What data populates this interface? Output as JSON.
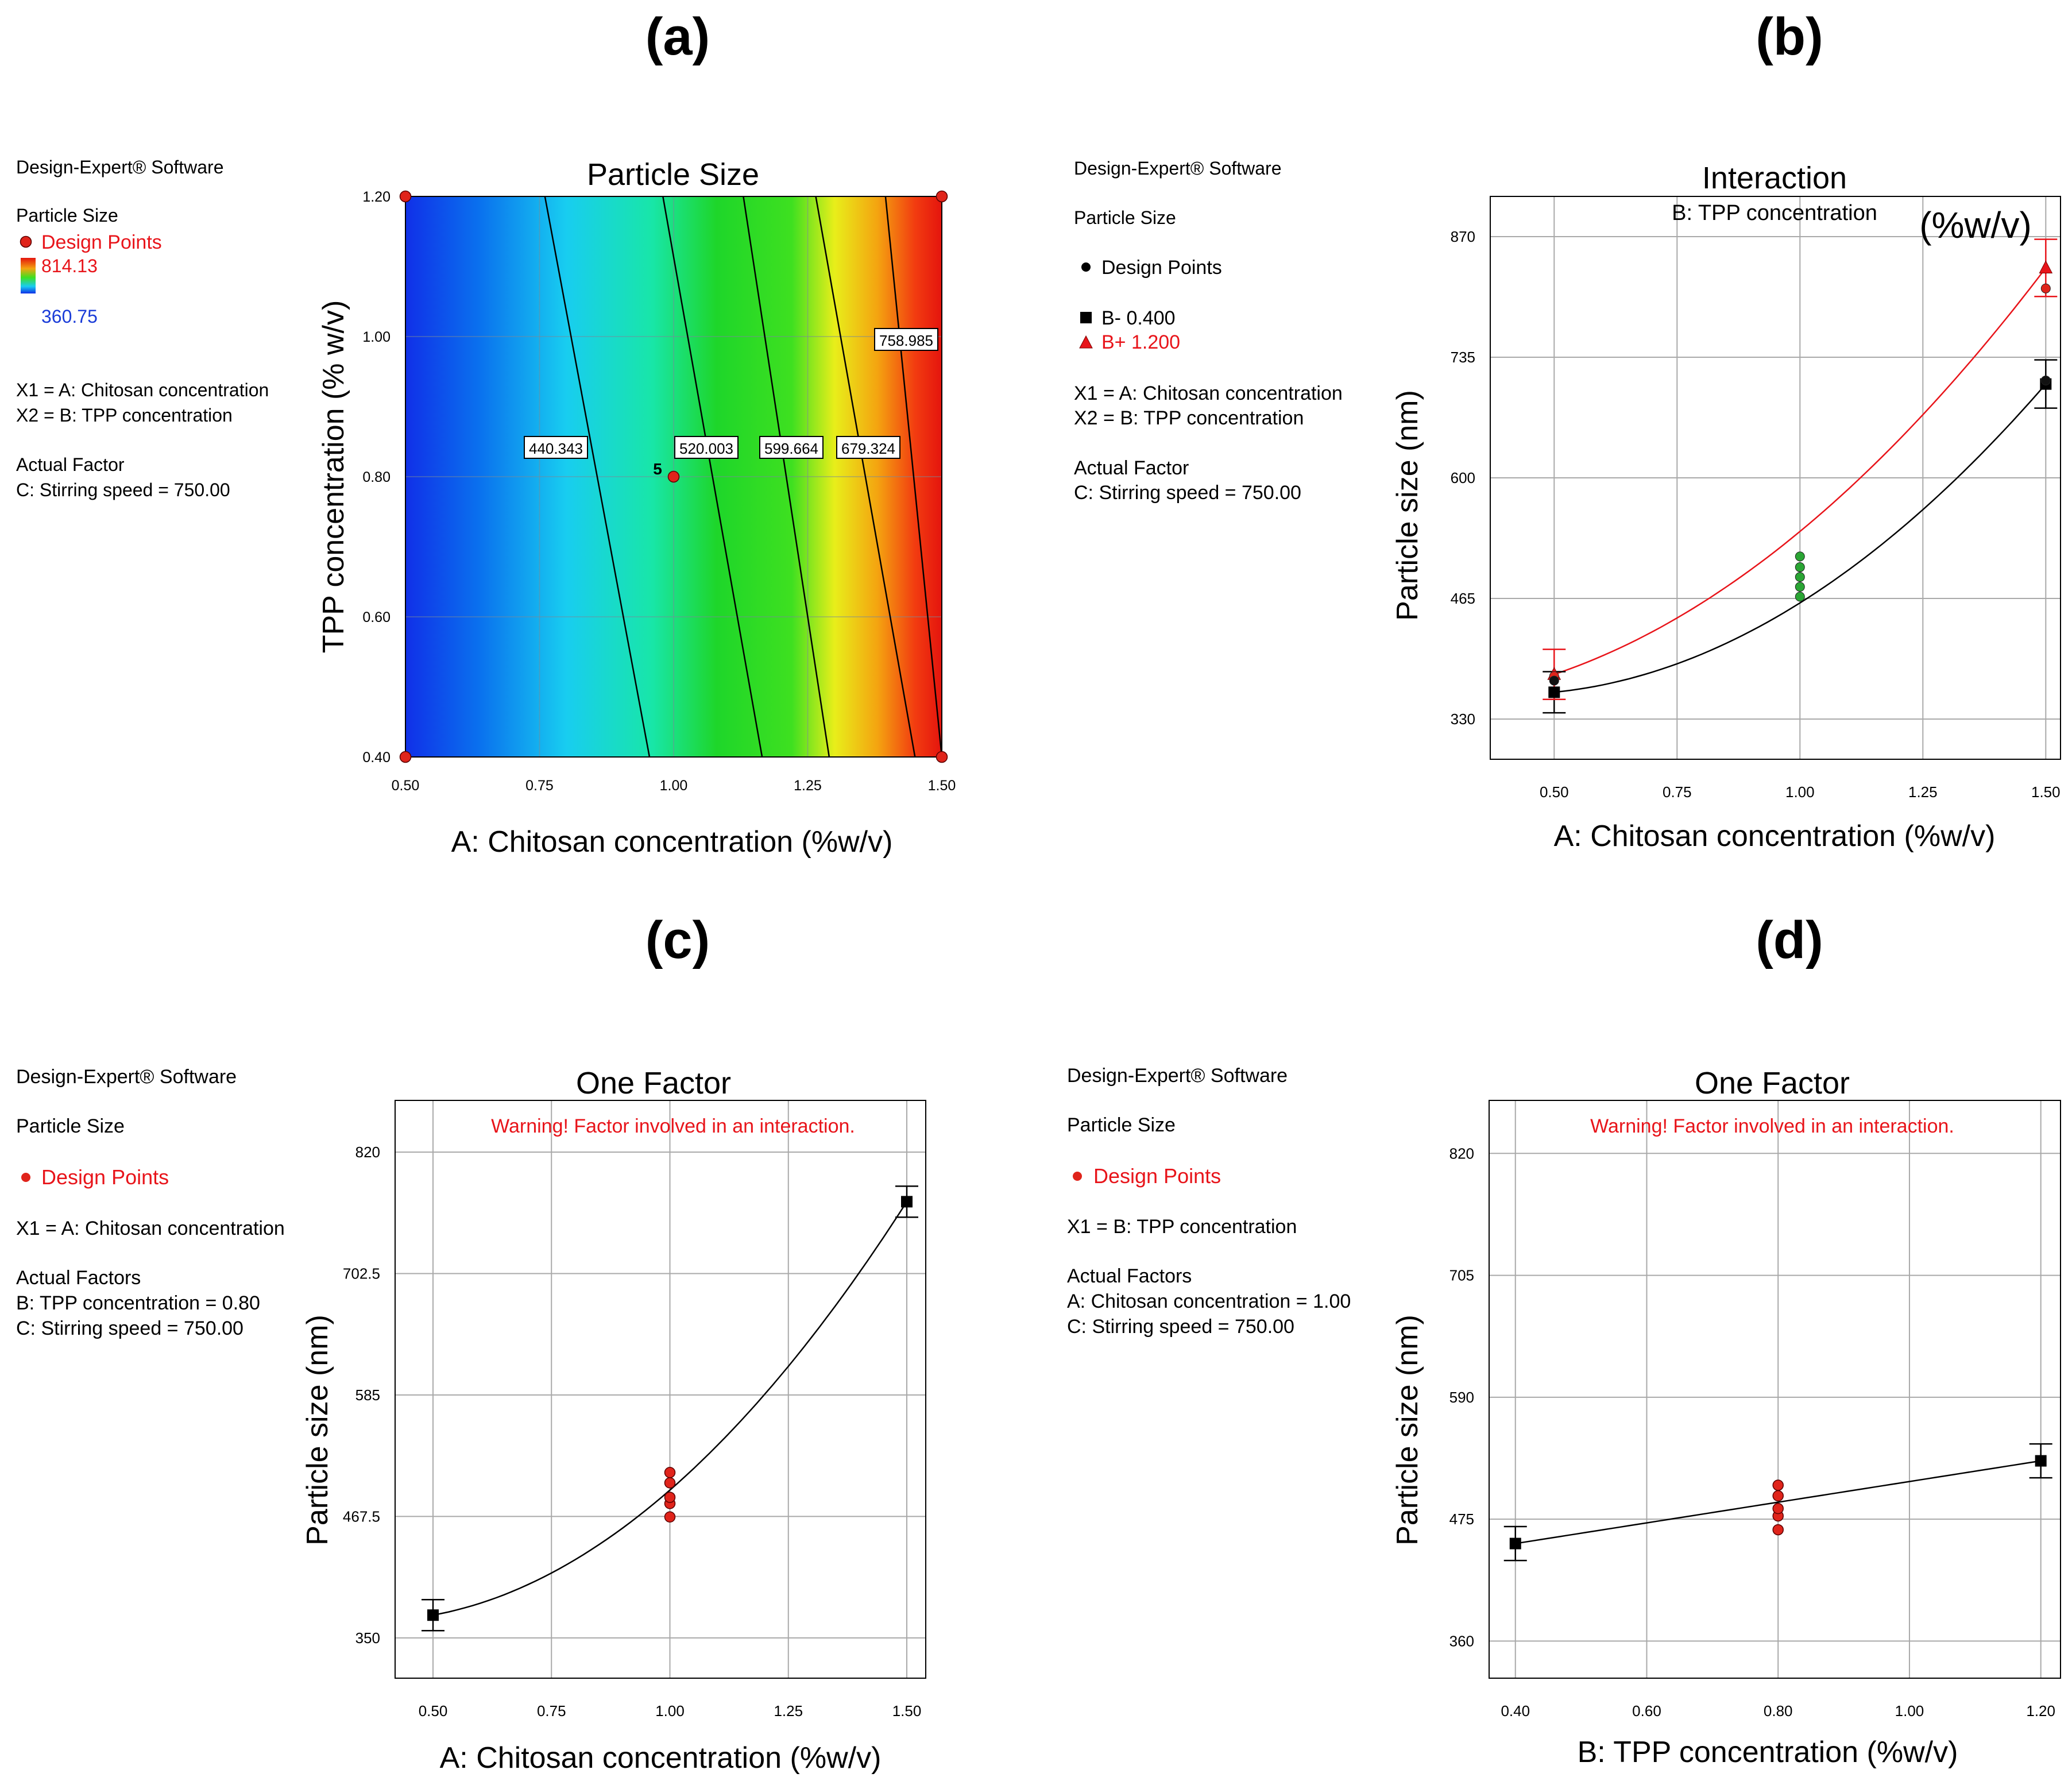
{
  "colors": {
    "accent_red": "#e8141a",
    "blue_text": "#1a3cd8",
    "grid": "#a9a9a9",
    "point_red": "#e0241b",
    "point_green": "#2aa534"
  },
  "chart_data": [
    {
      "panel_label": "(a)",
      "type": "heatmap",
      "title": "Particle Size",
      "xlabel": "A: Chitosan concentration (%w/v)",
      "ylabel": "TPP concentration (% w/v)",
      "xlim": [
        0.5,
        1.5
      ],
      "ylim": [
        0.4,
        1.2
      ],
      "xticks": [
        "0.50",
        "0.75",
        "1.00",
        "1.25",
        "1.50"
      ],
      "yticks": [
        "0.40",
        "0.60",
        "0.80",
        "1.00",
        "1.20"
      ],
      "color_range": [
        360.75,
        814.13
      ],
      "contours": [
        {
          "label": "440.343",
          "x_at_ymin": 0.955,
          "x_at_ymax": 0.76
        },
        {
          "label": "520.003",
          "x_at_ymin": 1.165,
          "x_at_ymax": 0.98
        },
        {
          "label": "599.664",
          "x_at_ymin": 1.29,
          "x_at_ymax": 1.13
        },
        {
          "label": "679.324",
          "x_at_ymin": 1.45,
          "x_at_ymax": 1.265
        },
        {
          "label": "758.985",
          "x_at_ymin": 1.5,
          "x_at_ymax": 1.395
        }
      ],
      "center_point": {
        "x": 1.0,
        "y": 0.8,
        "replicates": "5"
      },
      "design_points": [
        {
          "x": 0.5,
          "y": 0.4
        },
        {
          "x": 0.5,
          "y": 1.2
        },
        {
          "x": 1.5,
          "y": 0.4
        },
        {
          "x": 1.5,
          "y": 1.2
        },
        {
          "x": 1.0,
          "y": 0.8
        }
      ],
      "legend": [
        "Design-Expert® Software",
        "Particle Size",
        "Design Points",
        "814.13",
        "360.75",
        "X1 = A: Chitosan concentration",
        "X2 = B: TPP concentration",
        "Actual Factor",
        "C: Stirring speed = 750.00"
      ]
    },
    {
      "panel_label": "(b)",
      "type": "line",
      "title": "Interaction",
      "subtitle": "B: TPP concentration",
      "annotation": "(%w/v)",
      "xlabel": "A: Chitosan concentration (%w/v)",
      "ylabel": "Particle size (nm)",
      "xlim": [
        0.37,
        1.53
      ],
      "ylim": [
        285,
        915
      ],
      "xticks": [
        "0.50",
        "0.75",
        "1.00",
        "1.25",
        "1.50"
      ],
      "yticks": [
        "330",
        "465",
        "600",
        "735",
        "870"
      ],
      "series": [
        {
          "name": "B- 0.400",
          "x": [
            0.5,
            1.0,
            1.5
          ],
          "values": [
            360,
            460,
            705
          ],
          "err": [
            23,
            0,
            27
          ],
          "color": "#000000"
        },
        {
          "name": "B+ 1.200",
          "x": [
            0.5,
            1.0,
            1.5
          ],
          "values": [
            380,
            540,
            835
          ],
          "err": [
            28,
            0,
            32
          ],
          "color": "#e8141a"
        }
      ],
      "design_points": [
        {
          "x": 0.5,
          "y": 378,
          "color": "red"
        },
        {
          "x": 0.5,
          "y": 373,
          "color": "black"
        },
        {
          "x": 1.0,
          "y": 467,
          "color": "green"
        },
        {
          "x": 1.0,
          "y": 478,
          "color": "green"
        },
        {
          "x": 1.0,
          "y": 489,
          "color": "green"
        },
        {
          "x": 1.0,
          "y": 500,
          "color": "green"
        },
        {
          "x": 1.0,
          "y": 512,
          "color": "green"
        },
        {
          "x": 1.5,
          "y": 812,
          "color": "red"
        },
        {
          "x": 1.5,
          "y": 709,
          "color": "black"
        }
      ],
      "legend": [
        "Design-Expert® Software",
        "Particle Size",
        "Design Points",
        "B- 0.400",
        "B+ 1.200",
        "X1 = A: Chitosan concentration",
        "X2 = B: TPP concentration",
        "Actual Factor",
        "C: Stirring speed = 750.00"
      ]
    },
    {
      "panel_label": "(c)",
      "type": "line",
      "title": "One Factor",
      "warning": "Warning! Factor involved in an interaction.",
      "xlabel": "A: Chitosan concentration (%w/v)",
      "ylabel": "Particle size (nm)",
      "xlim": [
        0.42,
        1.54
      ],
      "ylim": [
        311,
        870
      ],
      "xticks": [
        "0.50",
        "0.75",
        "1.00",
        "1.25",
        "1.50"
      ],
      "yticks": [
        "350",
        "467.5",
        "585",
        "702.5",
        "820"
      ],
      "series": [
        {
          "name": "Particle size",
          "x": [
            0.5,
            1.0,
            1.5
          ],
          "values": [
            372,
            493,
            772
          ],
          "err": [
            15,
            0,
            15
          ]
        }
      ],
      "design_points": [
        {
          "x": 1.0,
          "y": 467
        },
        {
          "x": 1.0,
          "y": 480
        },
        {
          "x": 1.0,
          "y": 486
        },
        {
          "x": 1.0,
          "y": 500
        },
        {
          "x": 1.0,
          "y": 510
        }
      ],
      "legend": [
        "Design-Expert® Software",
        "Particle Size",
        "Design Points",
        "X1 = A: Chitosan concentration",
        "Actual Factors",
        "B: TPP concentration = 0.80",
        "C: Stirring speed = 750.00"
      ]
    },
    {
      "panel_label": "(d)",
      "type": "line",
      "title": "One Factor",
      "warning": "Warning! Factor involved in an interaction.",
      "xlabel": "B: TPP concentration (%w/v)",
      "ylabel": "Particle size (nm)",
      "xlim": [
        0.36,
        1.23
      ],
      "ylim": [
        325,
        870
      ],
      "xticks": [
        "0.40",
        "0.60",
        "0.80",
        "1.00",
        "1.20"
      ],
      "yticks": [
        "360",
        "475",
        "590",
        "705",
        "820"
      ],
      "series": [
        {
          "name": "Particle size",
          "x": [
            0.4,
            1.2
          ],
          "values": [
            452,
            530
          ],
          "err": [
            16,
            16
          ]
        }
      ],
      "design_points": [
        {
          "x": 0.8,
          "y": 465
        },
        {
          "x": 0.8,
          "y": 478
        },
        {
          "x": 0.8,
          "y": 485
        },
        {
          "x": 0.8,
          "y": 497
        },
        {
          "x": 0.8,
          "y": 507
        }
      ],
      "legend": [
        "Design-Expert® Software",
        "Particle Size",
        "Design Points",
        "X1 = B: TPP concentration",
        "Actual Factors",
        "A: Chitosan concentration = 1.00",
        "C: Stirring speed = 750.00"
      ]
    }
  ]
}
